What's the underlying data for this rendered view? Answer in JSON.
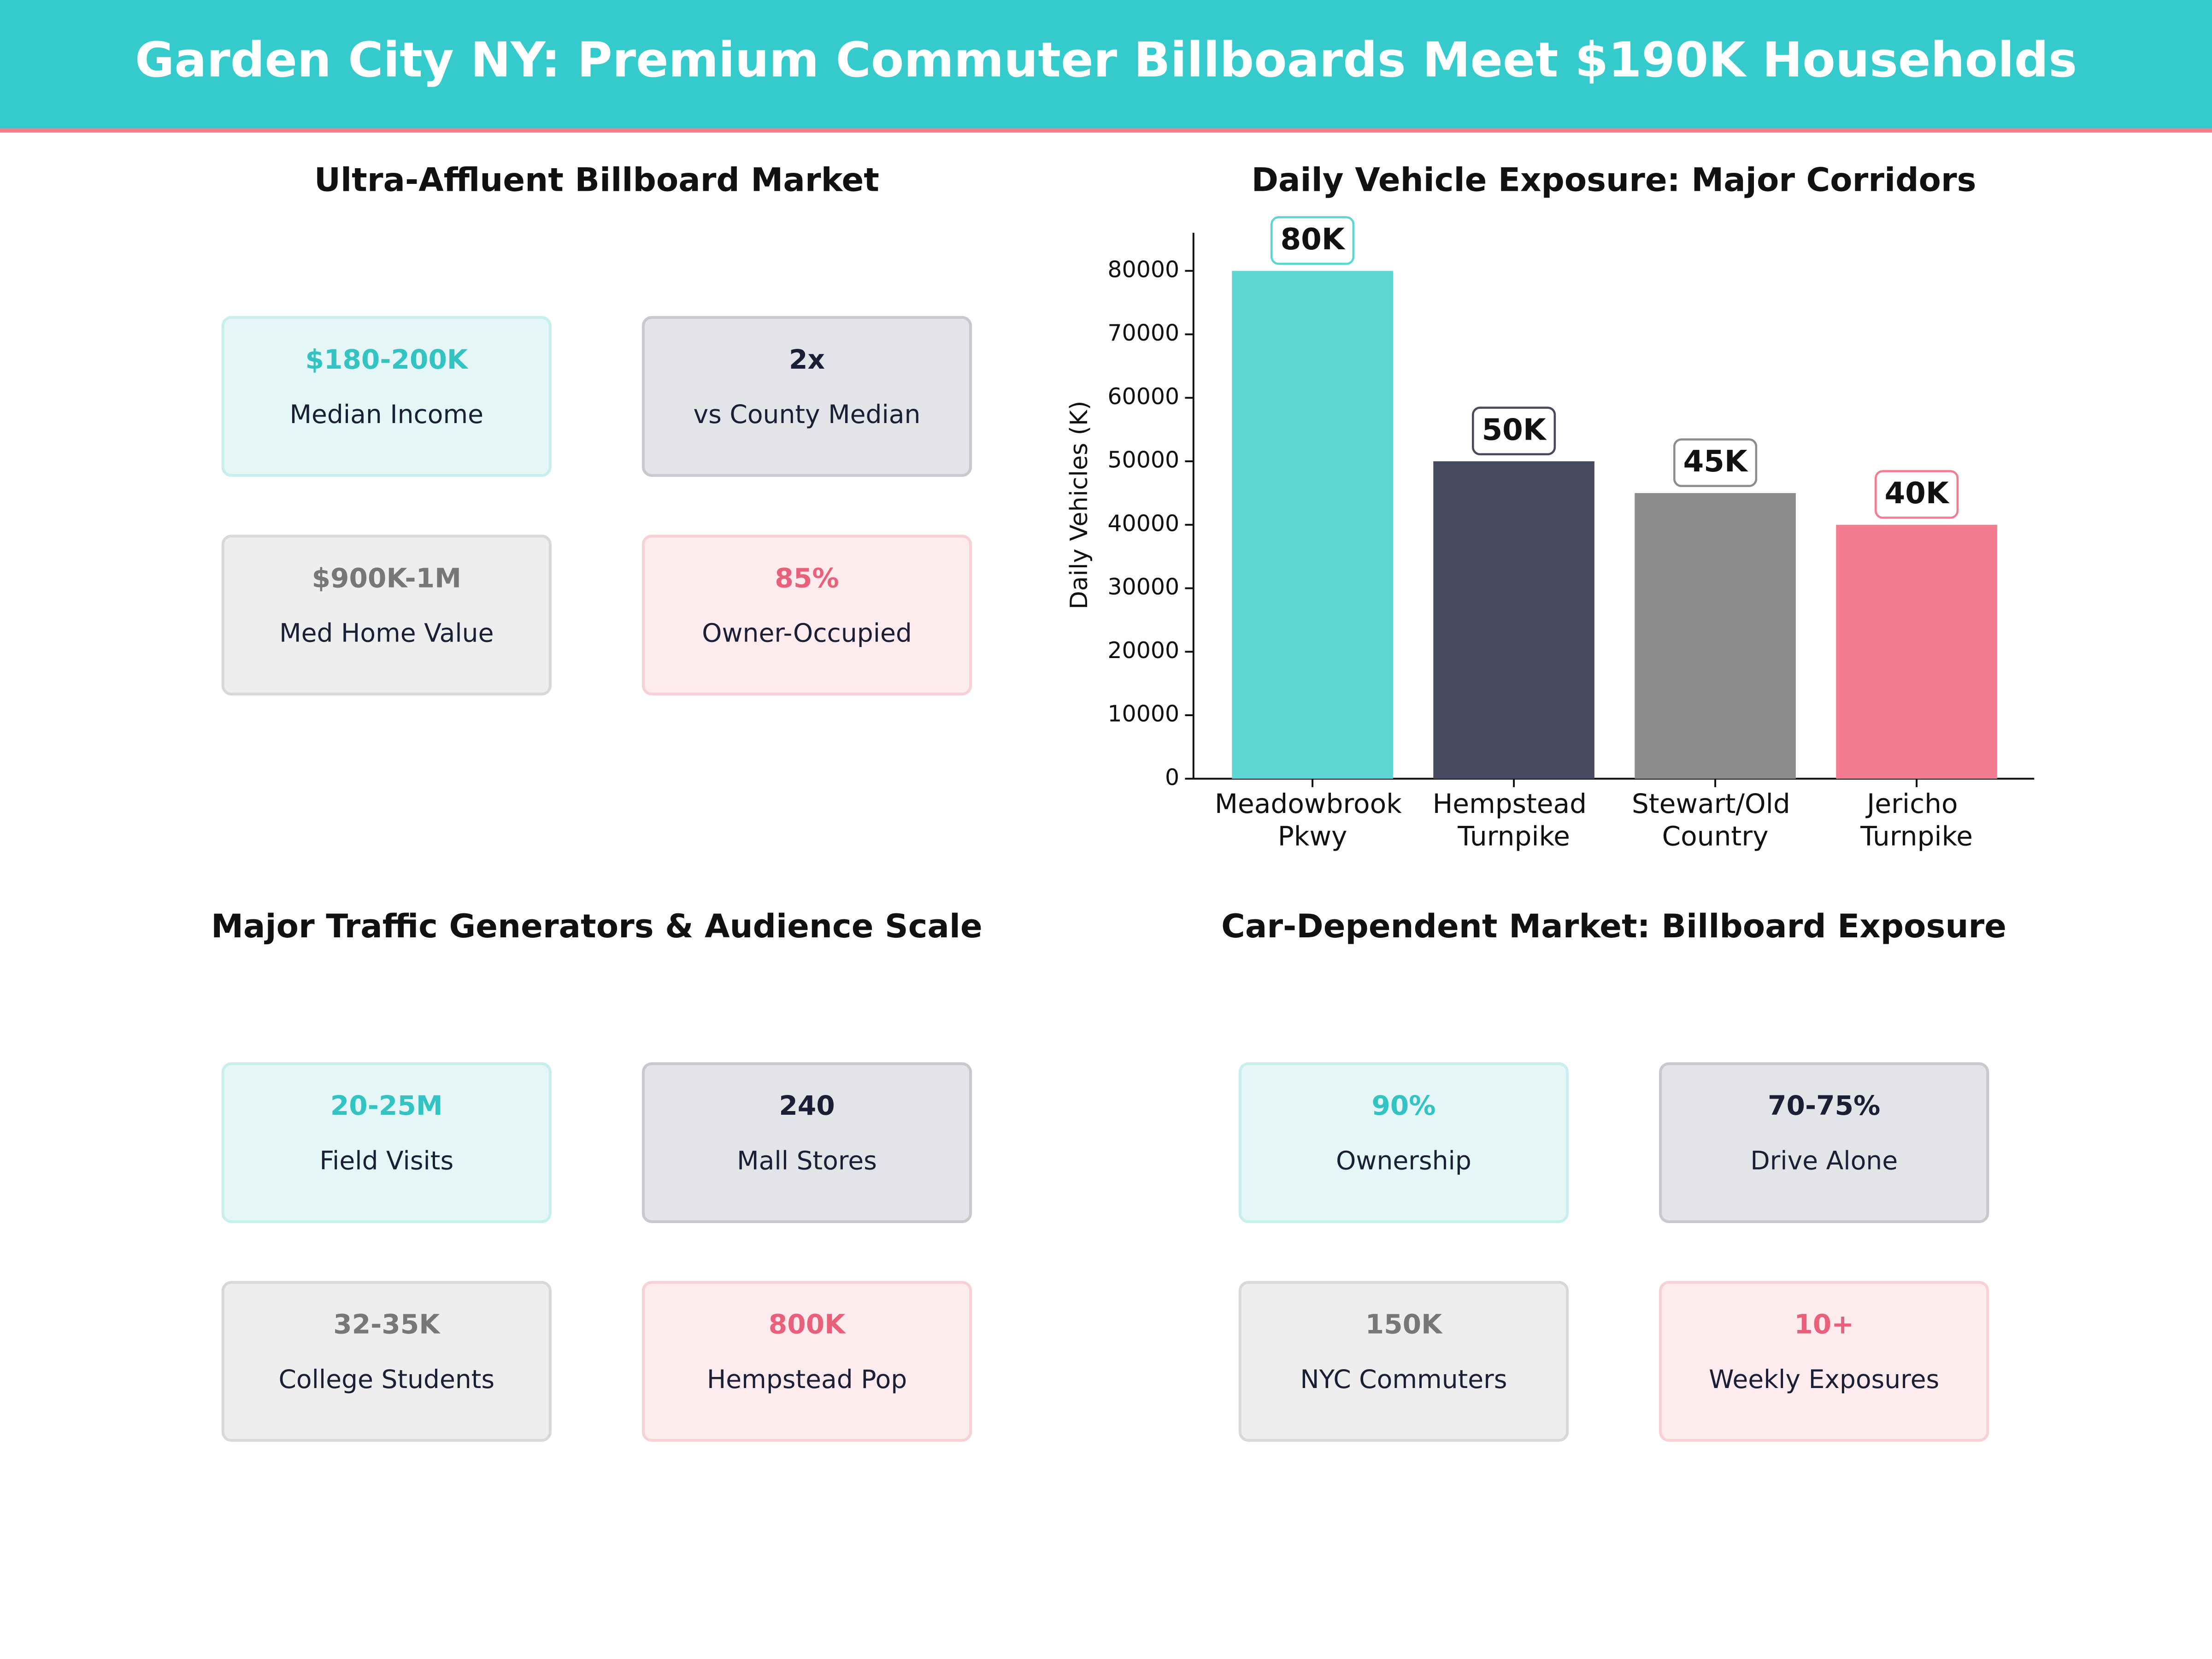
{
  "title": "Garden City NY: Premium Commuter Billboards Meet $190K Households",
  "kpi_panels": [
    {
      "title": "Ultra-Affluent Billboard Market",
      "cards": [
        {
          "value": "$180-200K",
          "label": "Median Income"
        },
        {
          "value": "2x",
          "label": "vs County Median"
        },
        {
          "value": "$900K-1M",
          "label": "Med Home Value"
        },
        {
          "value": "85%",
          "label": "Owner-Occupied"
        }
      ]
    },
    {
      "title": "Major Traffic Generators & Audience Scale",
      "cards": [
        {
          "value": "20-25M",
          "label": "Field Visits"
        },
        {
          "value": "240",
          "label": "Mall Stores"
        },
        {
          "value": "32-35K",
          "label": "College Students"
        },
        {
          "value": "800K",
          "label": "Hempstead Pop"
        }
      ]
    },
    {
      "title": "Car-Dependent Market: Billboard Exposure",
      "cards": [
        {
          "value": "90%",
          "label": "Ownership"
        },
        {
          "value": "70-75%",
          "label": "Drive Alone"
        },
        {
          "value": "150K",
          "label": "NYC Commuters"
        },
        {
          "value": "10+",
          "label": "Weekly Exposures"
        }
      ]
    }
  ],
  "chart_data": {
    "type": "bar",
    "title": "Daily Vehicle Exposure: Major Corridors",
    "ylabel": "Daily Vehicles (K)",
    "categories": [
      "Meadowbrook Pkwy",
      "Hempstead Turnpike",
      "Stewart/Old Country",
      "Jericho Turnpike"
    ],
    "values": [
      80000,
      50000,
      45000,
      40000
    ],
    "value_labels": [
      "80K",
      "50K",
      "45K",
      "40K"
    ],
    "colors": [
      "#5dd6d3",
      "#474a5e",
      "#8c8c8c",
      "#f47c91"
    ],
    "ylim": [
      0,
      86000
    ],
    "yticks": [
      0,
      10000,
      20000,
      30000,
      40000,
      50000,
      60000,
      70000,
      80000
    ],
    "grid": false
  }
}
